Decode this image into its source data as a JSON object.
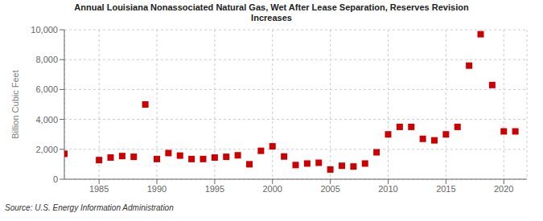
{
  "chart_data": {
    "type": "scatter",
    "title": "Annual Louisiana Nonassociated Natural Gas, Wet After Lease Separation, Reserves Revision\nIncreases",
    "ylabel": "Billion Cubic Feet",
    "source": "Source: U.S. Energy Information Administration",
    "color": "#cc0000",
    "marker": "square",
    "grid": true,
    "xlim": [
      1982,
      2022
    ],
    "xticks": [
      1985,
      1990,
      1995,
      2000,
      2005,
      2010,
      2015,
      2020
    ],
    "ylim": [
      0,
      10000
    ],
    "yticks": [
      0,
      {
        "value": 2000,
        "label": "2,000"
      },
      {
        "value": 4000,
        "label": "4,000"
      },
      {
        "value": 6000,
        "label": "6,000"
      },
      {
        "value": 8000,
        "label": "8,000"
      },
      {
        "value": 10000,
        "label": "10,000"
      }
    ],
    "x": [
      1982,
      1985,
      1986,
      1987,
      1988,
      1989,
      1990,
      1991,
      1992,
      1993,
      1994,
      1995,
      1996,
      1997,
      1998,
      1999,
      2000,
      2001,
      2002,
      2003,
      2004,
      2005,
      2006,
      2007,
      2008,
      2009,
      2010,
      2011,
      2012,
      2013,
      2014,
      2015,
      2016,
      2017,
      2018,
      2019,
      2020,
      2021
    ],
    "values": [
      1700,
      1280,
      1450,
      1550,
      1500,
      5000,
      1350,
      1750,
      1580,
      1350,
      1350,
      1450,
      1500,
      1600,
      1000,
      1900,
      2200,
      1520,
      950,
      1050,
      1100,
      650,
      900,
      850,
      1050,
      1800,
      3000,
      3500,
      3500,
      2700,
      2600,
      3000,
      3500,
      7600,
      9700,
      6300,
      3200,
      3200
    ]
  }
}
